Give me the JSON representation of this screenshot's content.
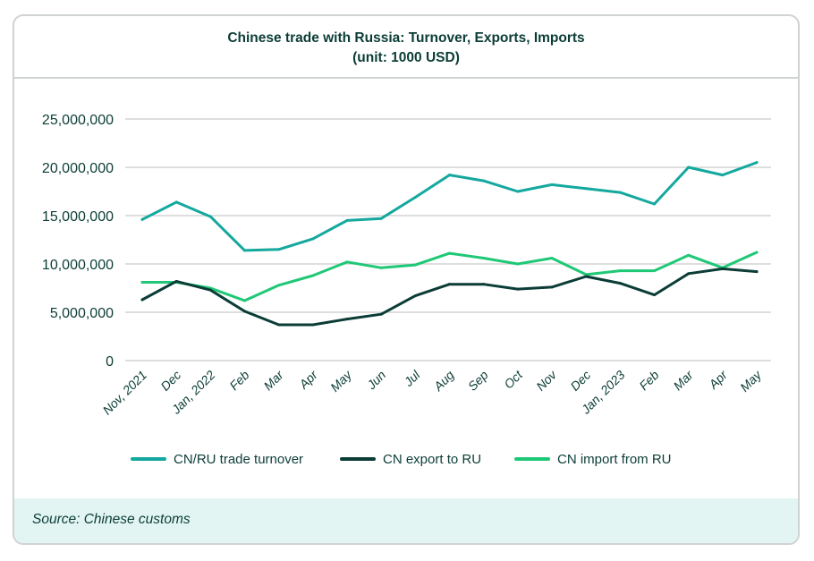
{
  "chart_data": {
    "type": "line",
    "title": "Chinese trade with Russia: Turnover, Exports, Imports",
    "subtitle": "(unit: 1000 USD)",
    "xlabel": "",
    "ylabel": "",
    "ylim": [
      0,
      25000000
    ],
    "yticks": [
      0,
      5000000,
      10000000,
      15000000,
      20000000,
      25000000
    ],
    "ytick_labels": [
      "0",
      "5,000,000",
      "10,000,000",
      "15,000,000",
      "20,000,000",
      "25,000,000"
    ],
    "grid": true,
    "legend_position": "bottom",
    "categories": [
      "Nov, 2021",
      "Dec",
      "Jan, 2022",
      "Feb",
      "Mar",
      "Apr",
      "May",
      "Jun",
      "Jul",
      "Aug",
      "Sep",
      "Oct",
      "Nov",
      "Dec",
      "Jan, 2023",
      "Feb",
      "Mar",
      "Apr",
      "May"
    ],
    "series": [
      {
        "name": "CN/RU trade turnover",
        "color": "#14a89e",
        "values": [
          14600000,
          16400000,
          14900000,
          11400000,
          11500000,
          12600000,
          14500000,
          14700000,
          16900000,
          19200000,
          18600000,
          17500000,
          18200000,
          17800000,
          17400000,
          16200000,
          20000000,
          19200000,
          20500000
        ]
      },
      {
        "name": "CN export to RU",
        "color": "#0b3d36",
        "values": [
          6300000,
          8200000,
          7300000,
          5100000,
          3700000,
          3700000,
          4300000,
          4800000,
          6700000,
          7900000,
          7900000,
          7400000,
          7600000,
          8700000,
          8000000,
          6800000,
          9000000,
          9500000,
          9200000
        ]
      },
      {
        "name": "CN import from RU",
        "color": "#1fc877",
        "values": [
          8100000,
          8100000,
          7500000,
          6200000,
          7800000,
          8800000,
          10200000,
          9600000,
          9900000,
          11100000,
          10600000,
          10000000,
          10600000,
          8900000,
          9300000,
          9300000,
          10900000,
          9600000,
          11200000
        ]
      }
    ]
  },
  "footer": {
    "source": "Source: Chinese customs"
  }
}
